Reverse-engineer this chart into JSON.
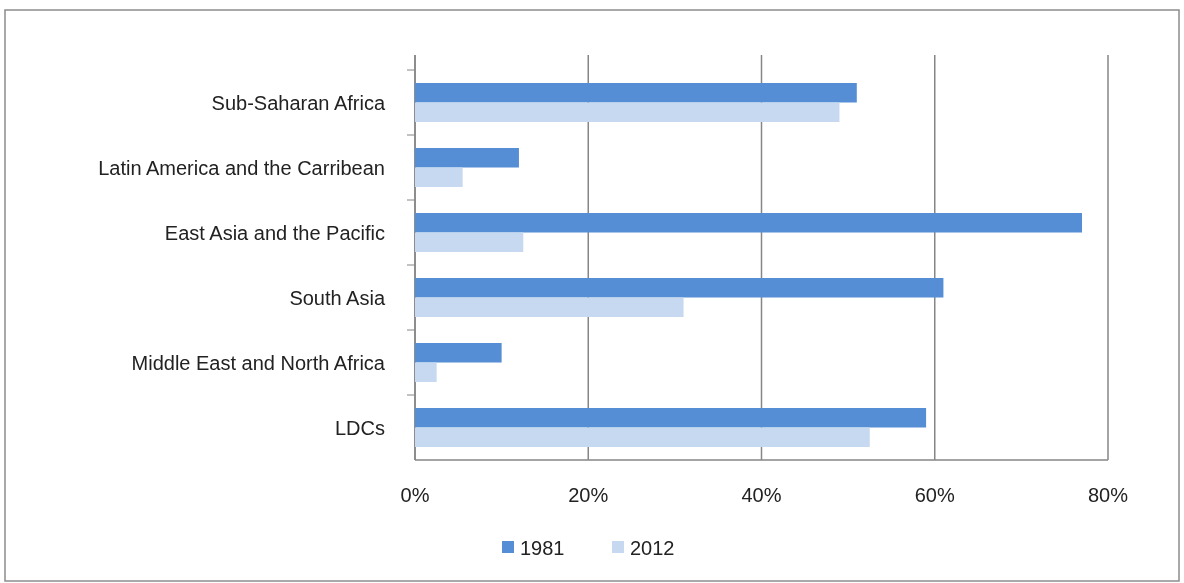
{
  "chart_data": {
    "type": "bar",
    "orientation": "horizontal",
    "categories": [
      "Sub-Saharan Africa",
      "Latin America and the Carribean",
      "East Asia and the Pacific",
      "South Asia",
      "Middle East and North Africa",
      "LDCs"
    ],
    "series": [
      {
        "name": "1981",
        "color": "#558ed5",
        "values": [
          51,
          12,
          77,
          61,
          10,
          59
        ]
      },
      {
        "name": "2012",
        "color": "#c6d9f1",
        "values": [
          49,
          5.5,
          12.5,
          31,
          2.5,
          52.5
        ]
      }
    ],
    "xlim": [
      0,
      80
    ],
    "xticks": [
      {
        "value": 0,
        "label": "0%"
      },
      {
        "value": 20,
        "label": "20%"
      },
      {
        "value": 40,
        "label": "40%"
      },
      {
        "value": 60,
        "label": "60%"
      },
      {
        "value": 80,
        "label": "80%"
      }
    ],
    "grid": "x",
    "legend": "bottom"
  }
}
